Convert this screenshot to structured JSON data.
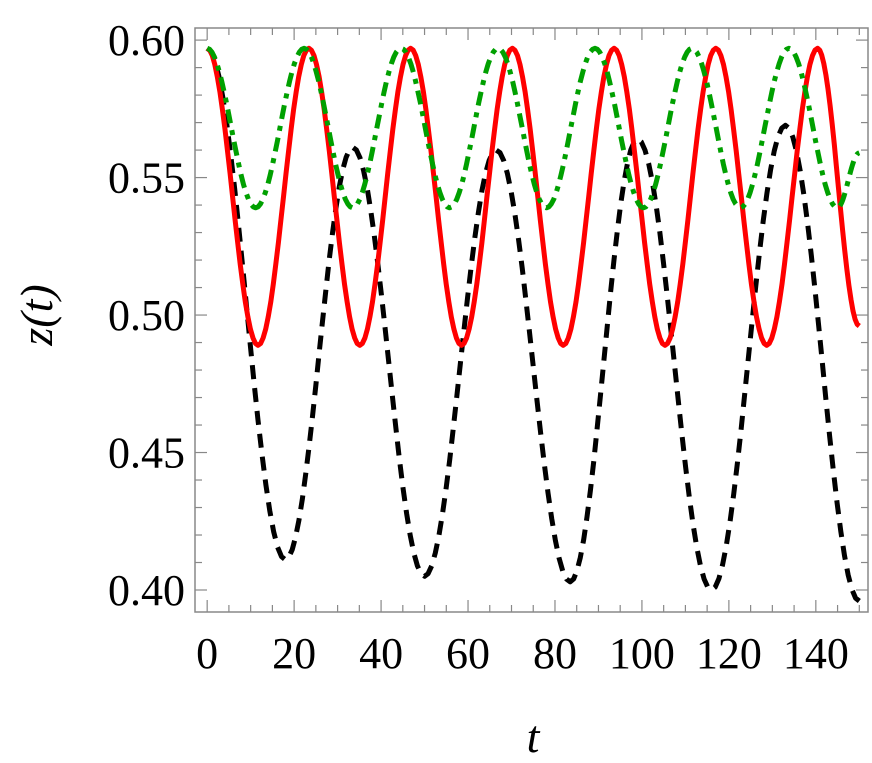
{
  "chart_data": {
    "type": "line",
    "title": "",
    "xlabel": "t",
    "ylabel": "z(t)",
    "xlim": [
      -2.8,
      152
    ],
    "ylim": [
      0.392,
      0.6044
    ],
    "grid": false,
    "x_ticks": [
      0,
      20,
      40,
      60,
      80,
      100,
      120,
      140
    ],
    "x_tick_labels": [
      "0",
      "20",
      "40",
      "60",
      "80",
      "100",
      "120",
      "140"
    ],
    "y_ticks": [
      0.4,
      0.45,
      0.5,
      0.55,
      0.6
    ],
    "y_tick_labels": [
      "0.40",
      "0.45",
      "0.50",
      "0.55",
      "0.60"
    ],
    "series": [
      {
        "style": "dashed",
        "color": "#000000",
        "extrema": [
          [
            0,
            0.597
          ],
          [
            18,
            0.411
          ],
          [
            33.5,
            0.561
          ],
          [
            50,
            0.405
          ],
          [
            66.5,
            0.56
          ],
          [
            83.5,
            0.403
          ],
          [
            99,
            0.564
          ],
          [
            116,
            0.4
          ],
          [
            133,
            0.569
          ],
          [
            150,
            0.396
          ]
        ]
      },
      {
        "style": "solid",
        "color": "#ff0000",
        "extrema": [
          [
            0,
            0.597
          ],
          [
            11.7,
            0.489
          ],
          [
            23.4,
            0.597
          ],
          [
            35.1,
            0.489
          ],
          [
            46.8,
            0.597
          ],
          [
            58.5,
            0.489
          ],
          [
            70.2,
            0.597
          ],
          [
            81.9,
            0.489
          ],
          [
            93.6,
            0.597
          ],
          [
            105.3,
            0.489
          ],
          [
            117,
            0.597
          ],
          [
            128.7,
            0.489
          ],
          [
            140.4,
            0.597
          ],
          [
            150,
            0.496
          ]
        ]
      },
      {
        "style": "dot-dashed",
        "color": "#00a000",
        "extrema": [
          [
            0,
            0.597
          ],
          [
            11.15,
            0.539
          ],
          [
            22.3,
            0.597
          ],
          [
            33.45,
            0.539
          ],
          [
            44.6,
            0.597
          ],
          [
            55.75,
            0.539
          ],
          [
            66.9,
            0.597
          ],
          [
            78.05,
            0.539
          ],
          [
            89.2,
            0.597
          ],
          [
            100.35,
            0.539
          ],
          [
            111.5,
            0.597
          ],
          [
            122.65,
            0.539
          ],
          [
            133.8,
            0.597
          ],
          [
            144.95,
            0.539
          ],
          [
            150,
            0.559
          ]
        ]
      }
    ]
  }
}
